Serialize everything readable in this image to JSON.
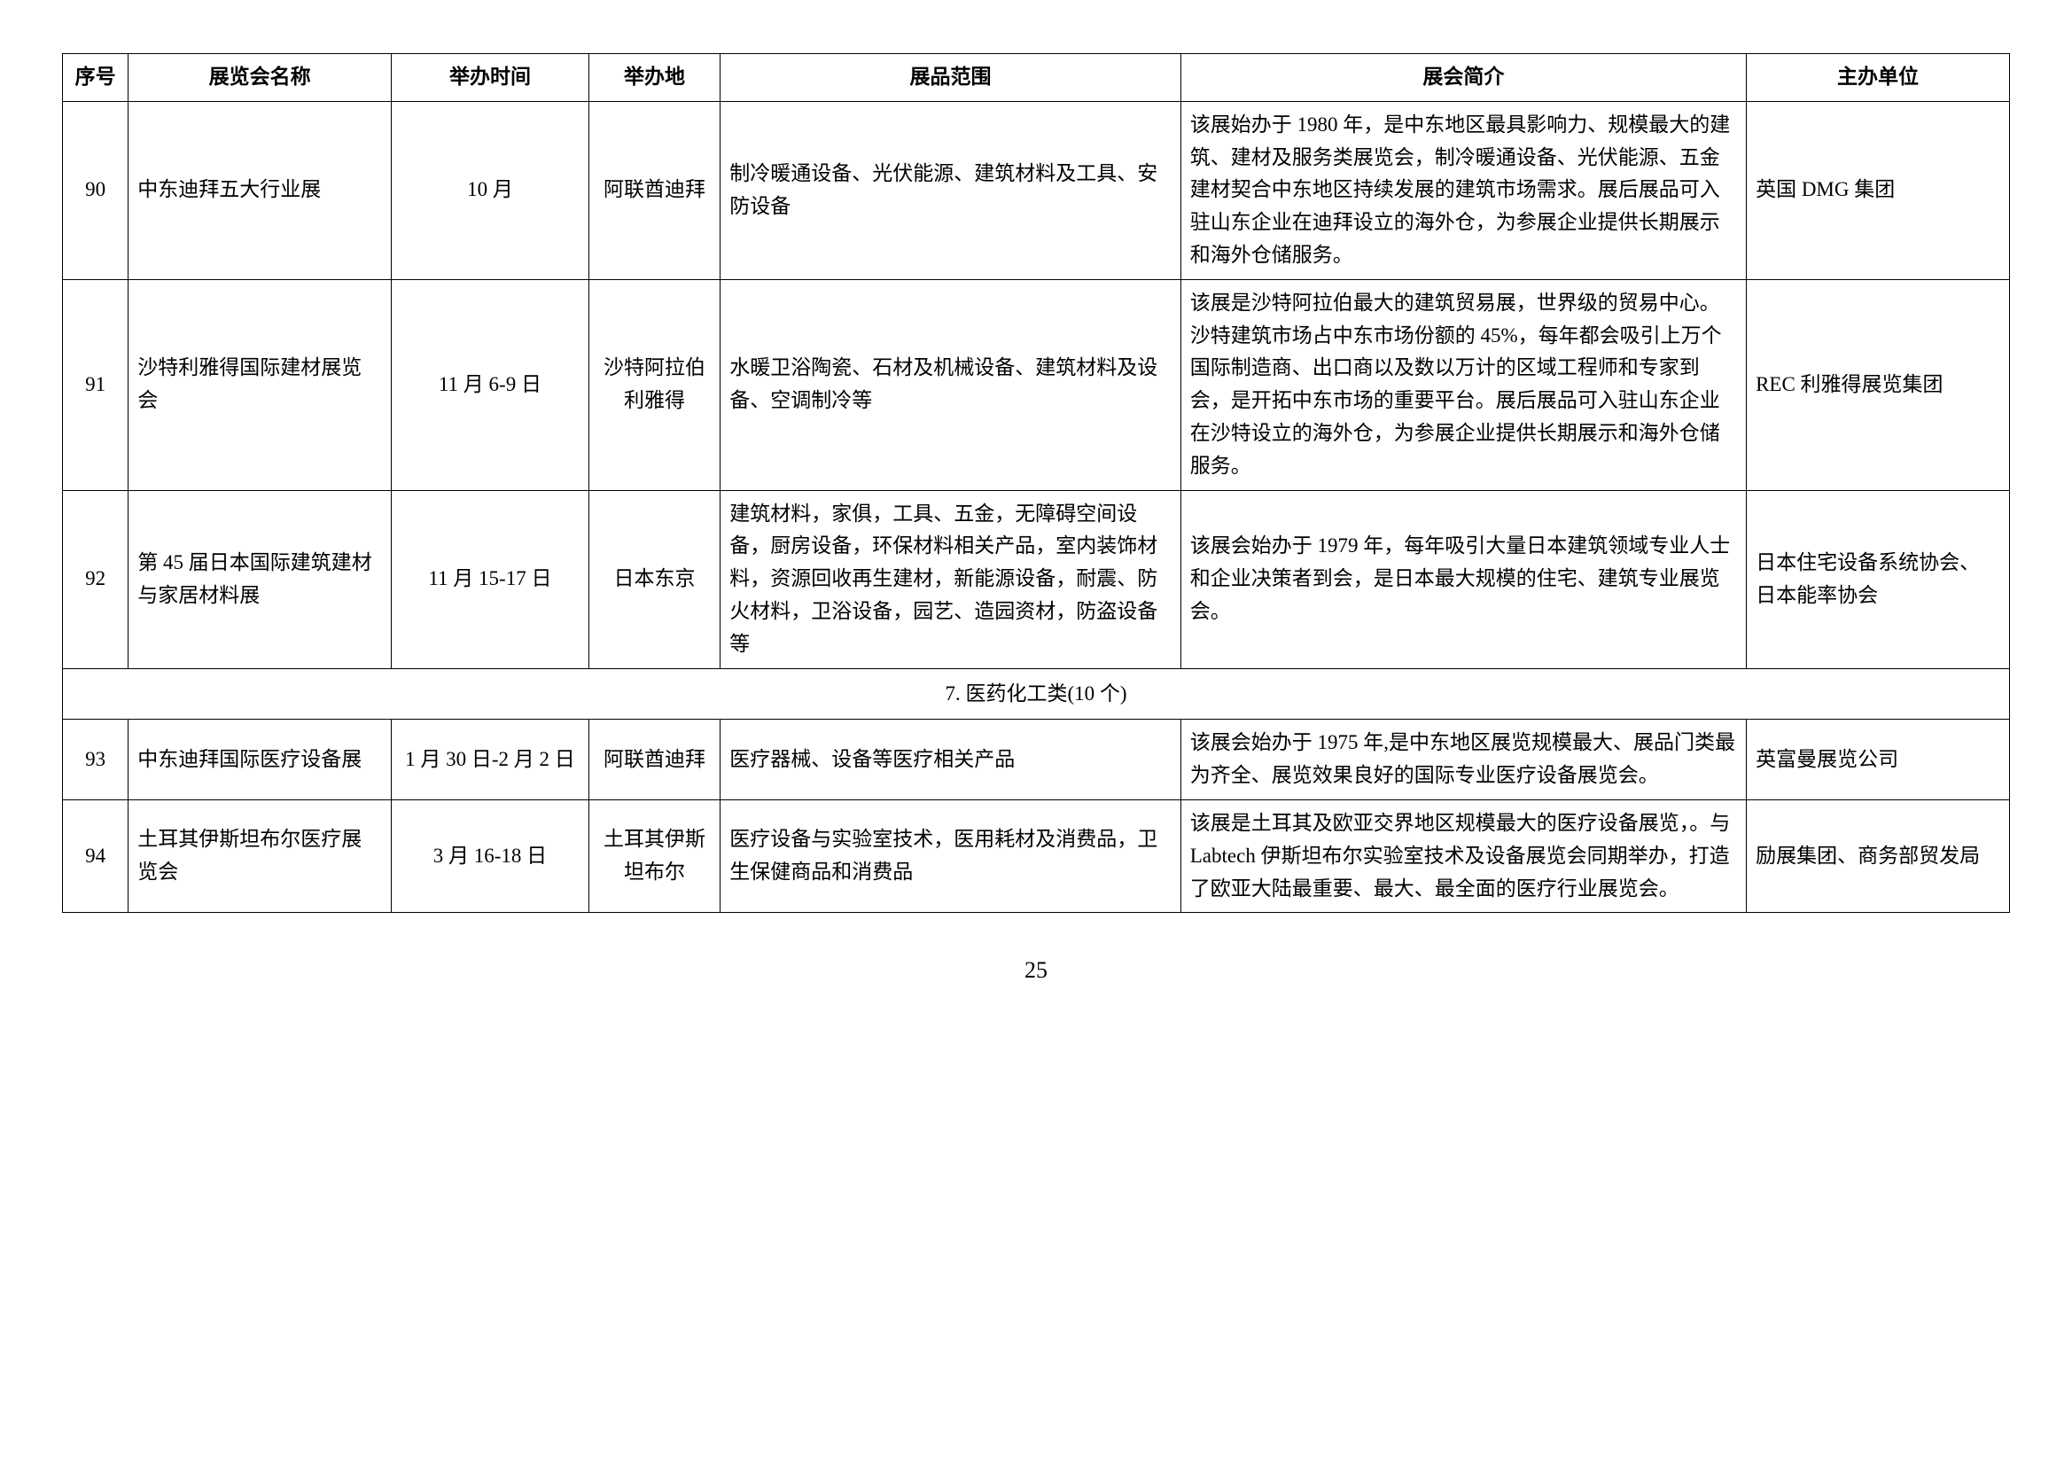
{
  "columns": {
    "seq": "序号",
    "name": "展览会名称",
    "time": "举办时间",
    "place": "举办地",
    "scope": "展品范围",
    "intro": "展会简介",
    "org": "主办单位"
  },
  "rows": [
    {
      "seq": "90",
      "name": "中东迪拜五大行业展",
      "time": "10 月",
      "place": "阿联酋迪拜",
      "scope": "制冷暖通设备、光伏能源、建筑材料及工具、安防设备",
      "intro": "该展始办于 1980 年，是中东地区最具影响力、规模最大的建筑、建材及服务类展览会，制冷暖通设备、光伏能源、五金建材契合中东地区持续发展的建筑市场需求。展后展品可入驻山东企业在迪拜设立的海外仓，为参展企业提供长期展示和海外仓储服务。",
      "org": "英国 DMG 集团"
    },
    {
      "seq": "91",
      "name": "沙特利雅得国际建材展览会",
      "time": "11 月 6-9 日",
      "place": "沙特阿拉伯利雅得",
      "scope": "水暖卫浴陶瓷、石材及机械设备、建筑材料及设备、空调制冷等",
      "intro": "该展是沙特阿拉伯最大的建筑贸易展，世界级的贸易中心。沙特建筑市场占中东市场份额的 45%，每年都会吸引上万个国际制造商、出口商以及数以万计的区域工程师和专家到会，是开拓中东市场的重要平台。展后展品可入驻山东企业在沙特设立的海外仓，为参展企业提供长期展示和海外仓储服务。",
      "org": "REC 利雅得展览集团"
    },
    {
      "seq": "92",
      "name": "第 45 届日本国际建筑建材与家居材料展",
      "time": "11 月 15-17 日",
      "place": "日本东京",
      "scope": "建筑材料，家俱，工具、五金，无障碍空间设备，厨房设备，环保材料相关产品，室内装饰材料，资源回收再生建材，新能源设备，耐震、防火材料，卫浴设备，园艺、造园资材，防盗设备等",
      "intro": "该展会始办于 1979 年，每年吸引大量日本建筑领域专业人士和企业决策者到会，是日本最大规模的住宅、建筑专业展览会。",
      "org": "日本住宅设备系统协会、日本能率协会"
    }
  ],
  "section_title": "7. 医药化工类(10 个)",
  "rows2": [
    {
      "seq": "93",
      "name": "中东迪拜国际医疗设备展",
      "time": "1 月 30 日-2 月 2 日",
      "place": "阿联酋迪拜",
      "scope": "医疗器械、设备等医疗相关产品",
      "intro": "该展会始办于 1975 年,是中东地区展览规模最大、展品门类最为齐全、展览效果良好的国际专业医疗设备展览会。",
      "org": "英富曼展览公司"
    },
    {
      "seq": "94",
      "name": "土耳其伊斯坦布尔医疗展览会",
      "time": "3 月 16-18 日",
      "place": "土耳其伊斯坦布尔",
      "scope": "医疗设备与实验室技术，医用耗材及消费品，卫生保健商品和消费品",
      "intro": "该展是土耳其及欧亚交界地区规模最大的医疗设备展览，。与 Labtech 伊斯坦布尔实验室技术及设备展览会同期举办，打造了欧亚大陆最重要、最大、最全面的医疗行业展览会。",
      "org": "励展集团、商务部贸发局"
    }
  ],
  "page_number": "25"
}
